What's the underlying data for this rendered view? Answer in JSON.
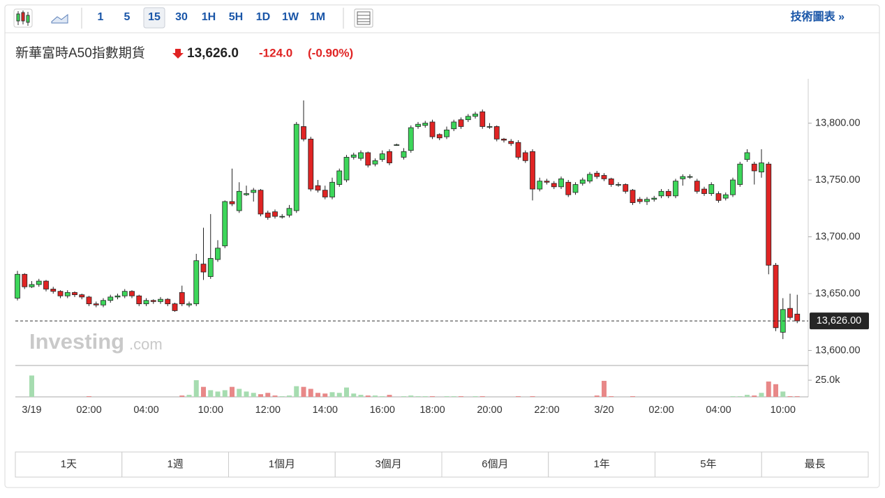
{
  "toolbar": {
    "intervals": [
      "1",
      "5",
      "15",
      "30",
      "1H",
      "5H",
      "1D",
      "1W",
      "1M"
    ],
    "selected_interval": "15",
    "link": "技術圖表 »"
  },
  "header": {
    "name": "新華富時A50指數期貨",
    "price": "13,626.0",
    "change": "-124.0",
    "change_pct": "(-0.90%)"
  },
  "chart_data": {
    "type": "candlestick",
    "categories": [
      null,
      null,
      "3/19",
      null,
      null,
      null,
      null,
      null,
      null,
      null,
      "02:00",
      null,
      null,
      null,
      null,
      null,
      null,
      null,
      "04:00",
      null,
      null,
      null,
      null,
      null,
      null,
      null,
      null,
      "10:00",
      null,
      null,
      null,
      null,
      null,
      null,
      null,
      "12:00",
      null,
      null,
      null,
      null,
      null,
      null,
      null,
      "14:00",
      null,
      null,
      null,
      null,
      null,
      null,
      null,
      "16:00",
      null,
      null,
      null,
      null,
      null,
      null,
      "18:00",
      null,
      null,
      null,
      null,
      null,
      null,
      null,
      "20:00",
      null,
      null,
      null,
      null,
      null,
      null,
      null,
      "22:00",
      null,
      null,
      null,
      null,
      null,
      null,
      null,
      "3/20",
      null,
      null,
      null,
      null,
      null,
      null,
      null,
      "02:00",
      null,
      null,
      null,
      null,
      null,
      null,
      null,
      "04:00",
      null,
      null,
      null,
      null,
      null,
      null,
      null,
      null,
      "10:00",
      null,
      null
    ],
    "open": [
      13646,
      13667,
      13656,
      13658,
      13661,
      13654,
      13652,
      13648,
      13651,
      13649,
      13647,
      13641,
      13640,
      13644,
      13647,
      13648,
      13652,
      13648,
      13641,
      13644,
      13643,
      13645,
      13641,
      13651,
      13640,
      13641,
      13676,
      13665,
      13680,
      13692,
      13731,
      13723,
      13737,
      13739,
      13741,
      13721,
      13722,
      13718,
      13719,
      13723,
      13797,
      13786,
      13745,
      13741,
      13735,
      13746,
      13750,
      13770,
      13769,
      13774,
      13764,
      13768,
      13775,
      13781,
      13770,
      13776,
      13797,
      13798,
      13801,
      13790,
      13788,
      13795,
      13803,
      13803,
      13806,
      13810,
      13797,
      13797,
      13786,
      13784,
      13783,
      13774,
      13775,
      13742,
      13749,
      13747,
      13744,
      13748,
      13739,
      13747,
      13749,
      13756,
      13754,
      13751,
      13746,
      13746,
      13741,
      13733,
      13731,
      13733,
      13736,
      13740,
      13736,
      13751,
      13753,
      13749,
      13742,
      13738,
      13738,
      13734,
      13737,
      13746,
      13768,
      13764,
      13757,
      13764,
      13675,
      13616,
      13637,
      13632
    ],
    "high": [
      13670,
      13668,
      13661,
      13663,
      13662,
      13656,
      13653,
      13653,
      13652,
      13650,
      13648,
      13643,
      13646,
      13649,
      13650,
      13654,
      13653,
      13649,
      13646,
      13645,
      13647,
      13646,
      13642,
      13657,
      13643,
      13685,
      13708,
      13720,
      13697,
      13732,
      13760,
      13748,
      13745,
      13743,
      13742,
      13723,
      13724,
      13720,
      13728,
      13801,
      13820,
      13788,
      13750,
      13745,
      13752,
      13760,
      13772,
      13774,
      13776,
      13775,
      13769,
      13776,
      13777,
      13782,
      13778,
      13798,
      13801,
      13802,
      13803,
      13791,
      13797,
      13803,
      13805,
      13808,
      13810,
      13812,
      13800,
      13798,
      13787,
      13786,
      13785,
      13776,
      13777,
      13752,
      13751,
      13749,
      13753,
      13750,
      13748,
      13752,
      13757,
      13758,
      13756,
      13752,
      13748,
      13747,
      13742,
      13735,
      13735,
      13736,
      13742,
      13742,
      13751,
      13755,
      13755,
      13751,
      13744,
      13748,
      13740,
      13739,
      13752,
      13766,
      13777,
      13766,
      13777,
      13766,
      13677,
      13646,
      13650,
      13649
    ],
    "low": [
      13644,
      13654,
      13655,
      13656,
      13652,
      13650,
      13646,
      13646,
      13647,
      13645,
      13639,
      13638,
      13638,
      13642,
      13645,
      13646,
      13646,
      13639,
      13639,
      13641,
      13641,
      13639,
      13634,
      13639,
      13638,
      13639,
      13662,
      13663,
      13678,
      13690,
      13727,
      13721,
      13736,
      13731,
      13718,
      13715,
      13716,
      13716,
      13717,
      13721,
      13784,
      13740,
      13739,
      13733,
      13733,
      13744,
      13748,
      13768,
      13767,
      13761,
      13762,
      13766,
      13763,
      13780,
      13768,
      13774,
      13795,
      13796,
      13786,
      13785,
      13786,
      13793,
      13795,
      13801,
      13804,
      13795,
      13795,
      13784,
      13783,
      13780,
      13768,
      13765,
      13732,
      13740,
      13746,
      13742,
      13742,
      13735,
      13737,
      13745,
      13747,
      13751,
      13749,
      13744,
      13744,
      13738,
      13728,
      13729,
      13728,
      13731,
      13734,
      13734,
      13734,
      13745,
      13751,
      13738,
      13736,
      13736,
      13730,
      13732,
      13735,
      13744,
      13766,
      13746,
      13752,
      13667,
      13617,
      13610,
      13627,
      13624
    ],
    "close": [
      13667,
      13656,
      13658,
      13661,
      13654,
      13652,
      13648,
      13651,
      13649,
      13647,
      13641,
      13640,
      13644,
      13647,
      13648,
      13652,
      13648,
      13641,
      13644,
      13643,
      13645,
      13641,
      13635,
      13641,
      13641,
      13679,
      13669,
      13681,
      13690,
      13731,
      13729,
      13740,
      13738,
      13741,
      13720,
      13717,
      13718,
      13718,
      13725,
      13799,
      13786,
      13742,
      13741,
      13735,
      13748,
      13758,
      13770,
      13772,
      13774,
      13763,
      13767,
      13773,
      13765,
      13781,
      13775,
      13796,
      13799,
      13800,
      13788,
      13787,
      13794,
      13801,
      13797,
      13806,
      13808,
      13797,
      13797,
      13786,
      13785,
      13782,
      13770,
      13767,
      13742,
      13749,
      13748,
      13744,
      13751,
      13737,
      13746,
      13750,
      13755,
      13753,
      13751,
      13746,
      13746,
      13740,
      13730,
      13731,
      13733,
      13734,
      13740,
      13736,
      13749,
      13753,
      13753,
      13740,
      13738,
      13746,
      13732,
      13737,
      13750,
      13764,
      13774,
      13758,
      13765,
      13675,
      13620,
      13636,
      13629,
      13626
    ],
    "volume": [
      0,
      0,
      32000,
      0,
      0,
      0,
      0,
      0,
      0,
      0,
      1000,
      0,
      0,
      0,
      0,
      0,
      0,
      0,
      0,
      0,
      0,
      0,
      0,
      2000,
      3000,
      25000,
      15000,
      10000,
      8000,
      10000,
      15000,
      12000,
      8000,
      6000,
      4000,
      6000,
      2000,
      1000,
      2000,
      16000,
      15000,
      12000,
      6000,
      5000,
      7000,
      6000,
      14000,
      5000,
      3000,
      2000,
      2000,
      1000,
      3000,
      0,
      1000,
      2000,
      1000,
      1000,
      1000,
      0,
      1000,
      1000,
      1000,
      0,
      1000,
      1000,
      0,
      0,
      0,
      0,
      1000,
      0,
      1000,
      0,
      0,
      0,
      0,
      0,
      0,
      0,
      0,
      2000,
      24000,
      1000,
      0,
      0,
      1000,
      0,
      0,
      0,
      0,
      0,
      0,
      0,
      0,
      0,
      0,
      0,
      0,
      0,
      1000,
      1000,
      3000,
      2000,
      6000,
      23000,
      19000,
      8000,
      1000,
      1000
    ],
    "ylim": [
      13588,
      13839
    ],
    "yticks": [
      {
        "value": 13600,
        "label": "13,600.00"
      },
      {
        "value": 13650,
        "label": "13,650.00"
      },
      {
        "value": 13700,
        "label": "13,700.00"
      },
      {
        "value": 13750,
        "label": "13,750.00"
      },
      {
        "value": 13800,
        "label": "13,800.00"
      }
    ],
    "volume_ylim": [
      0,
      46000
    ],
    "volume_yticks": [
      {
        "value": 25000,
        "label": "25.0k"
      }
    ],
    "last_price": {
      "value": 13626,
      "label": "13,626.00"
    },
    "up_color": "#3dd65a",
    "down_color": "#e02424",
    "volume_up_color": "#a6dcb0",
    "volume_down_color": "#e88888",
    "watermark": [
      "Investing",
      ".com"
    ]
  },
  "range_buttons": [
    "1天",
    "1週",
    "1個月",
    "3個月",
    "6個月",
    "1年",
    "5年",
    "最長"
  ]
}
